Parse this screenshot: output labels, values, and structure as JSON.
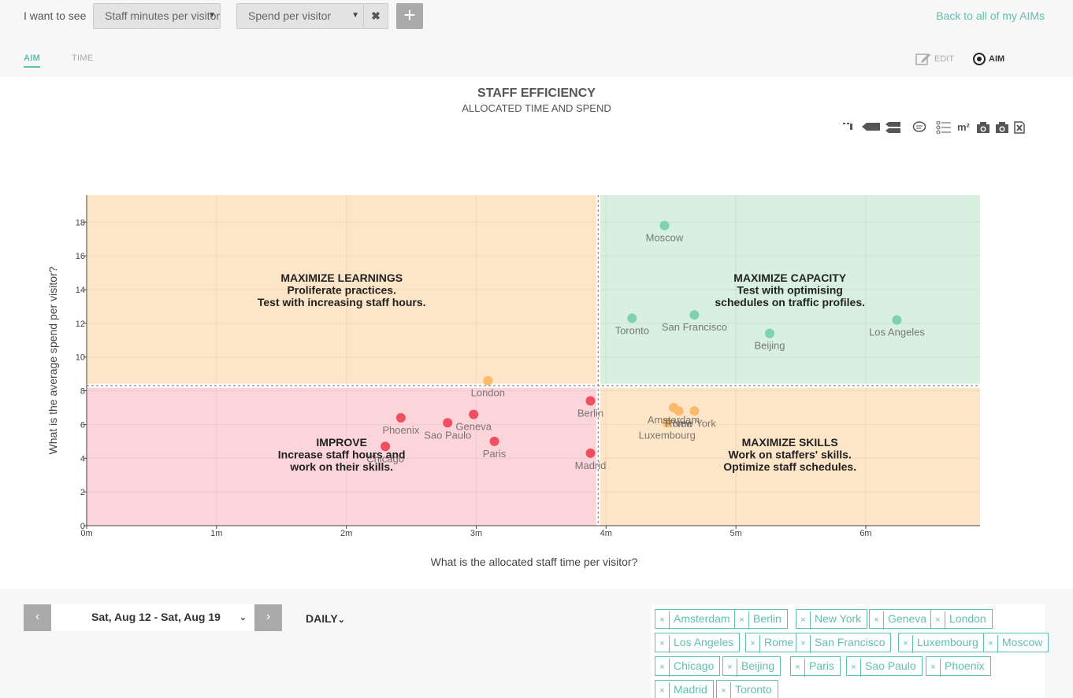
{
  "header": {
    "prompt": "I want to see",
    "select1": "Staff minutes per visitor",
    "select2": "Spend per visitor",
    "remove_label": "✖",
    "add_label": "+",
    "back_link": "Back to all of my AIMs"
  },
  "tabs": [
    {
      "label": "AIM"
    },
    {
      "label": "TIME"
    }
  ],
  "modes": {
    "edit_label": "EDIT",
    "aim_label": "AIM"
  },
  "chart_toolbar": [
    "m²"
  ],
  "chart_data": {
    "type": "scatter",
    "title": "STAFF EFFICIENCY",
    "subtitle": "ALLOCATED TIME AND SPEND",
    "xlabel": "What is the allocated staff time per visitor?",
    "ylabel": "What is the average spend per visitor?",
    "xlim": [
      0,
      6.88
    ],
    "ylim": [
      0,
      19.6
    ],
    "x_ticks": [
      {
        "v": 0,
        "label": "0m"
      },
      {
        "v": 1,
        "label": "1m"
      },
      {
        "v": 2,
        "label": "2m"
      },
      {
        "v": 3,
        "label": "3m"
      },
      {
        "v": 4,
        "label": "4m"
      },
      {
        "v": 5,
        "label": "5m"
      },
      {
        "v": 6,
        "label": "6m"
      }
    ],
    "y_ticks": [
      0,
      2,
      4,
      6,
      8,
      10,
      12,
      14,
      16,
      18
    ],
    "x_threshold": 3.94,
    "y_threshold": 8.3,
    "grid": true,
    "quadrants": [
      {
        "id": "top-left",
        "lines": [
          "MAXIMIZE LEARNINGS",
          "Proliferate practices.",
          "Test with increasing staff hours."
        ],
        "color": "#fde5c8"
      },
      {
        "id": "top-right",
        "lines": [
          "MAXIMIZE CAPACITY",
          "Test with optimising",
          "schedules on traffic profiles."
        ],
        "color": "#d8f0df"
      },
      {
        "id": "bottom-left",
        "lines": [
          "IMPROVE",
          "Increase staff hours and",
          "work on their skills."
        ],
        "color": "#fcd5da"
      },
      {
        "id": "bottom-right",
        "lines": [
          "MAXIMIZE SKILLS",
          "Work on staffers' skills.",
          "Optimize staff schedules."
        ],
        "color": "#fde5c8"
      }
    ],
    "points": [
      {
        "name": "Moscow",
        "x": 4.45,
        "y": 17.8,
        "color": "#7fd1b2"
      },
      {
        "name": "Toronto",
        "x": 4.2,
        "y": 12.3,
        "color": "#7fd1b2"
      },
      {
        "name": "San Francisco",
        "x": 4.68,
        "y": 12.5,
        "color": "#7fd1b2"
      },
      {
        "name": "Beijing",
        "x": 5.26,
        "y": 11.4,
        "color": "#7fd1b2"
      },
      {
        "name": "Los Angeles",
        "x": 6.24,
        "y": 12.2,
        "color": "#7fd1b2"
      },
      {
        "name": "London",
        "x": 3.09,
        "y": 8.6,
        "color": "#fbb96a"
      },
      {
        "name": "Amsterdam",
        "x": 4.52,
        "y": 7.0,
        "color": "#fbb96a"
      },
      {
        "name": "New York",
        "x": 4.68,
        "y": 6.8,
        "color": "#fbb96a"
      },
      {
        "name": "Rome",
        "x": 4.56,
        "y": 6.8,
        "color": "#fbb96a"
      },
      {
        "name": "Luxembourg",
        "x": 4.47,
        "y": 6.1,
        "color": "#fbb96a"
      },
      {
        "name": "Berlin",
        "x": 3.88,
        "y": 7.4,
        "color": "#f04f5f"
      },
      {
        "name": "Geneva",
        "x": 2.98,
        "y": 6.6,
        "color": "#f04f5f"
      },
      {
        "name": "Sao Paulo",
        "x": 2.78,
        "y": 6.1,
        "color": "#f04f5f"
      },
      {
        "name": "Phoenix",
        "x": 2.42,
        "y": 6.4,
        "color": "#f04f5f"
      },
      {
        "name": "Paris",
        "x": 3.14,
        "y": 5.0,
        "color": "#f04f5f"
      },
      {
        "name": "Chicago",
        "x": 2.3,
        "y": 4.7,
        "color": "#f04f5f"
      },
      {
        "name": "Madrid",
        "x": 3.88,
        "y": 4.3,
        "color": "#f04f5f"
      }
    ]
  },
  "footer": {
    "prev_label": "‹",
    "next_label": "›",
    "date_range": "Sat, Aug 12 - Sat, Aug 19",
    "granularity": "DAILY",
    "cities": [
      "Amsterdam",
      "Berlin",
      "New York",
      "Geneva",
      "London",
      "Los Angeles",
      "Rome",
      "San Francisco",
      "Luxembourg",
      "Moscow",
      "Chicago",
      "Beijing",
      "Paris",
      "Sao Paulo",
      "Phoenix",
      "Madrid",
      "Toronto"
    ],
    "remove_chip_label": "×"
  },
  "colors": {
    "accent": "#5fbfb0"
  }
}
